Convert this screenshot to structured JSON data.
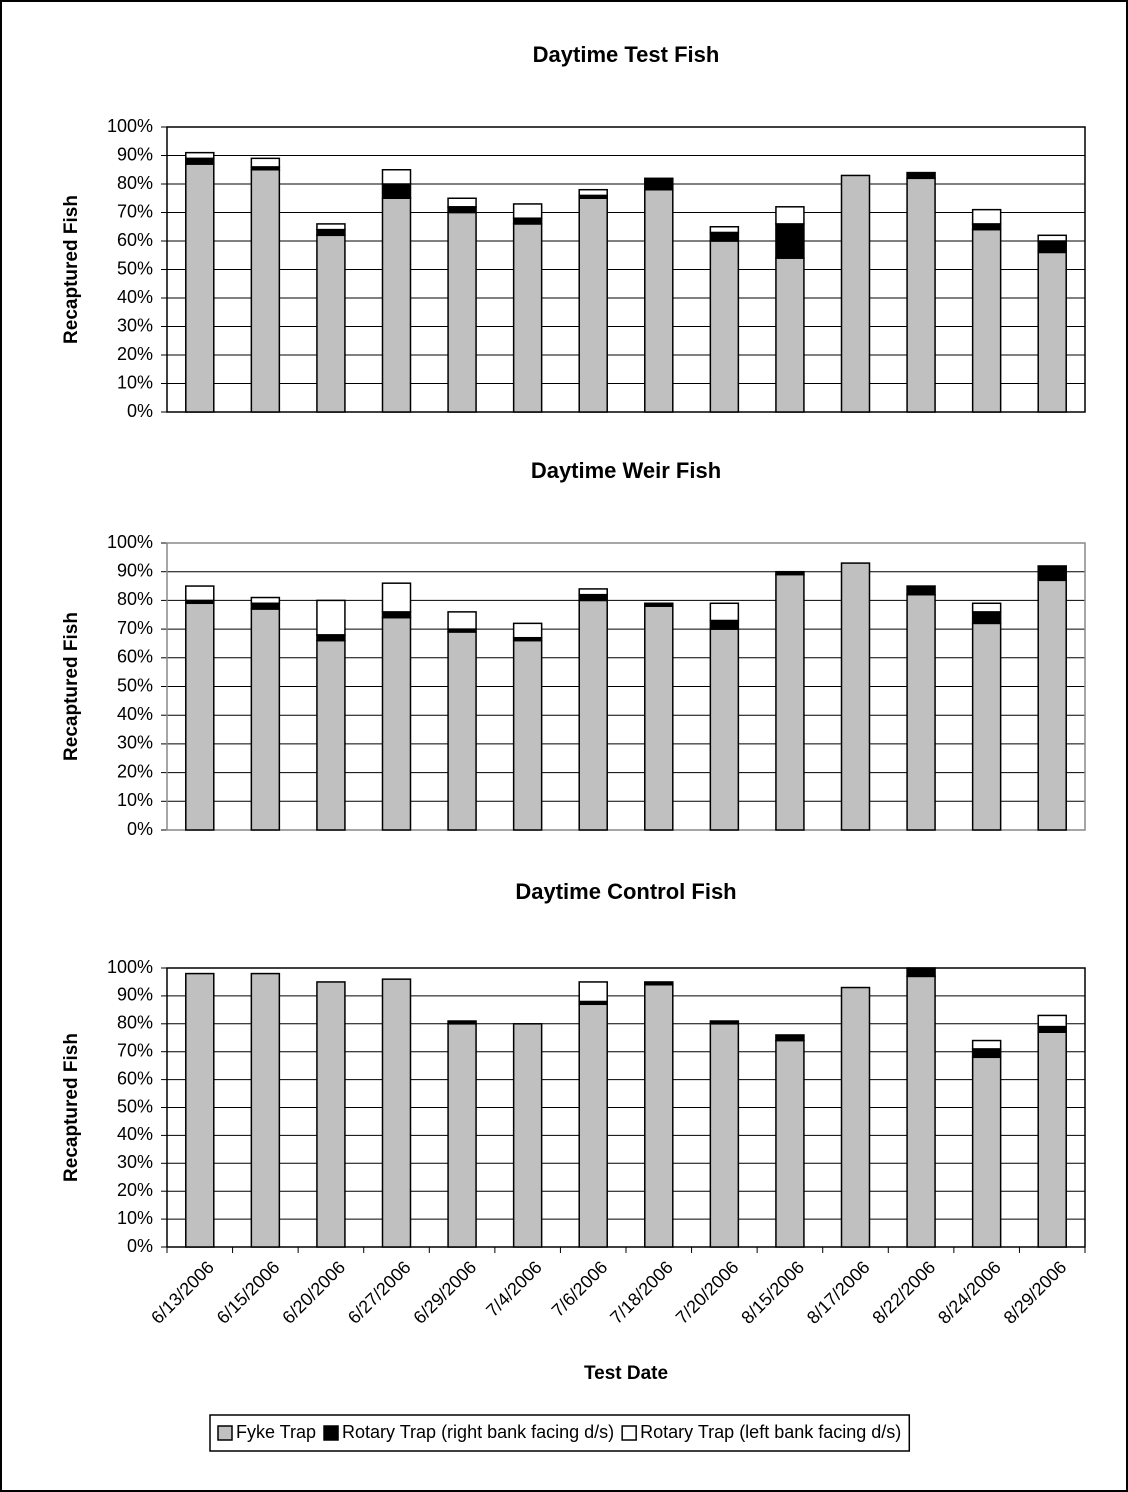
{
  "chart_data": [
    {
      "type": "bar",
      "stacked": true,
      "title": "Daytime Test Fish",
      "y_label": "Recaptured Fish",
      "categories": [
        "6/13/2006",
        "6/15/2006",
        "6/20/2006",
        "6/27/2006",
        "6/29/2006",
        "7/4/2006",
        "7/6/2006",
        "7/18/2006",
        "7/20/2006",
        "8/15/2006",
        "8/17/2006",
        "8/22/2006",
        "8/24/2006",
        "8/29/2006"
      ],
      "series": [
        {
          "name": "Fyke Trap",
          "color": "#c0c0c0",
          "values": [
            87,
            85,
            62,
            75,
            70,
            66,
            75,
            78,
            60,
            54,
            83,
            82,
            64,
            56
          ]
        },
        {
          "name": "Rotary Trap (right bank facing d/s)",
          "color": "#000000",
          "values": [
            2,
            1,
            2,
            5,
            2,
            2,
            1,
            4,
            3,
            12,
            0,
            2,
            2,
            4
          ]
        },
        {
          "name": "Rotary Trap (left bank facing d/s)",
          "color": "#ffffff",
          "values": [
            2,
            3,
            2,
            5,
            3,
            5,
            2,
            0,
            2,
            6,
            0,
            0,
            5,
            2
          ]
        }
      ],
      "ylim": [
        0,
        100
      ],
      "yticks": [
        {
          "value": 0,
          "label": "0%"
        },
        {
          "value": 10,
          "label": "10%"
        },
        {
          "value": 20,
          "label": "20%"
        },
        {
          "value": 30,
          "label": "30%"
        },
        {
          "value": 40,
          "label": "40%"
        },
        {
          "value": 50,
          "label": "50%"
        },
        {
          "value": 60,
          "label": "60%"
        },
        {
          "value": 70,
          "label": "70%"
        },
        {
          "value": 80,
          "label": "80%"
        },
        {
          "value": 90,
          "label": "90%"
        },
        {
          "value": 100,
          "label": "100%"
        }
      ],
      "grid": true
    },
    {
      "type": "bar",
      "stacked": true,
      "title": "Daytime Weir Fish",
      "y_label": "Recaptured Fish",
      "categories": [
        "6/13/2006",
        "6/15/2006",
        "6/20/2006",
        "6/27/2006",
        "6/29/2006",
        "7/4/2006",
        "7/6/2006",
        "7/18/2006",
        "7/20/2006",
        "8/15/2006",
        "8/17/2006",
        "8/22/2006",
        "8/24/2006",
        "8/29/2006"
      ],
      "series": [
        {
          "name": "Fyke Trap",
          "color": "#c0c0c0",
          "values": [
            79,
            77,
            66,
            74,
            69,
            66,
            80,
            78,
            70,
            89,
            93,
            82,
            72,
            87
          ]
        },
        {
          "name": "Rotary Trap (right bank facing d/s)",
          "color": "#000000",
          "values": [
            1,
            2,
            2,
            2,
            1,
            1,
            2,
            1,
            3,
            1,
            0,
            3,
            4,
            5
          ]
        },
        {
          "name": "Rotary Trap (left bank facing d/s)",
          "color": "#ffffff",
          "values": [
            5,
            2,
            12,
            10,
            6,
            5,
            2,
            0,
            6,
            0,
            0,
            0,
            3,
            0
          ]
        }
      ],
      "ylim": [
        0,
        100
      ],
      "yticks": [
        {
          "value": 0,
          "label": "0%"
        },
        {
          "value": 10,
          "label": "10%"
        },
        {
          "value": 20,
          "label": "20%"
        },
        {
          "value": 30,
          "label": "30%"
        },
        {
          "value": 40,
          "label": "40%"
        },
        {
          "value": 50,
          "label": "50%"
        },
        {
          "value": 60,
          "label": "60%"
        },
        {
          "value": 70,
          "label": "70%"
        },
        {
          "value": 80,
          "label": "80%"
        },
        {
          "value": 90,
          "label": "90%"
        },
        {
          "value": 100,
          "label": "100%"
        }
      ],
      "grid": true
    },
    {
      "type": "bar",
      "stacked": true,
      "title": "Daytime Control Fish",
      "y_label": "Recaptured Fish",
      "x_label": "Test Date",
      "categories": [
        "6/13/2006",
        "6/15/2006",
        "6/20/2006",
        "6/27/2006",
        "6/29/2006",
        "7/4/2006",
        "7/6/2006",
        "7/18/2006",
        "7/20/2006",
        "8/15/2006",
        "8/17/2006",
        "8/22/2006",
        "8/24/2006",
        "8/29/2006"
      ],
      "series": [
        {
          "name": "Fyke Trap",
          "color": "#c0c0c0",
          "values": [
            98,
            98,
            95,
            96,
            80,
            80,
            87,
            94,
            80,
            74,
            93,
            97,
            68,
            77
          ]
        },
        {
          "name": "Rotary Trap (right bank facing d/s)",
          "color": "#000000",
          "values": [
            0,
            0,
            0,
            0,
            1,
            0,
            1,
            1,
            1,
            2,
            0,
            3,
            3,
            2
          ]
        },
        {
          "name": "Rotary Trap (left bank facing d/s)",
          "color": "#ffffff",
          "values": [
            0,
            0,
            0,
            0,
            0,
            0,
            7,
            0,
            0,
            0,
            0,
            0,
            3,
            4
          ]
        }
      ],
      "ylim": [
        0,
        100
      ],
      "yticks": [
        {
          "value": 0,
          "label": "0%"
        },
        {
          "value": 10,
          "label": "10%"
        },
        {
          "value": 20,
          "label": "20%"
        },
        {
          "value": 30,
          "label": "30%"
        },
        {
          "value": 40,
          "label": "40%"
        },
        {
          "value": 50,
          "label": "50%"
        },
        {
          "value": 60,
          "label": "60%"
        },
        {
          "value": 70,
          "label": "70%"
        },
        {
          "value": 80,
          "label": "80%"
        },
        {
          "value": 90,
          "label": "90%"
        },
        {
          "value": 100,
          "label": "100%"
        }
      ],
      "grid": true
    }
  ]
}
